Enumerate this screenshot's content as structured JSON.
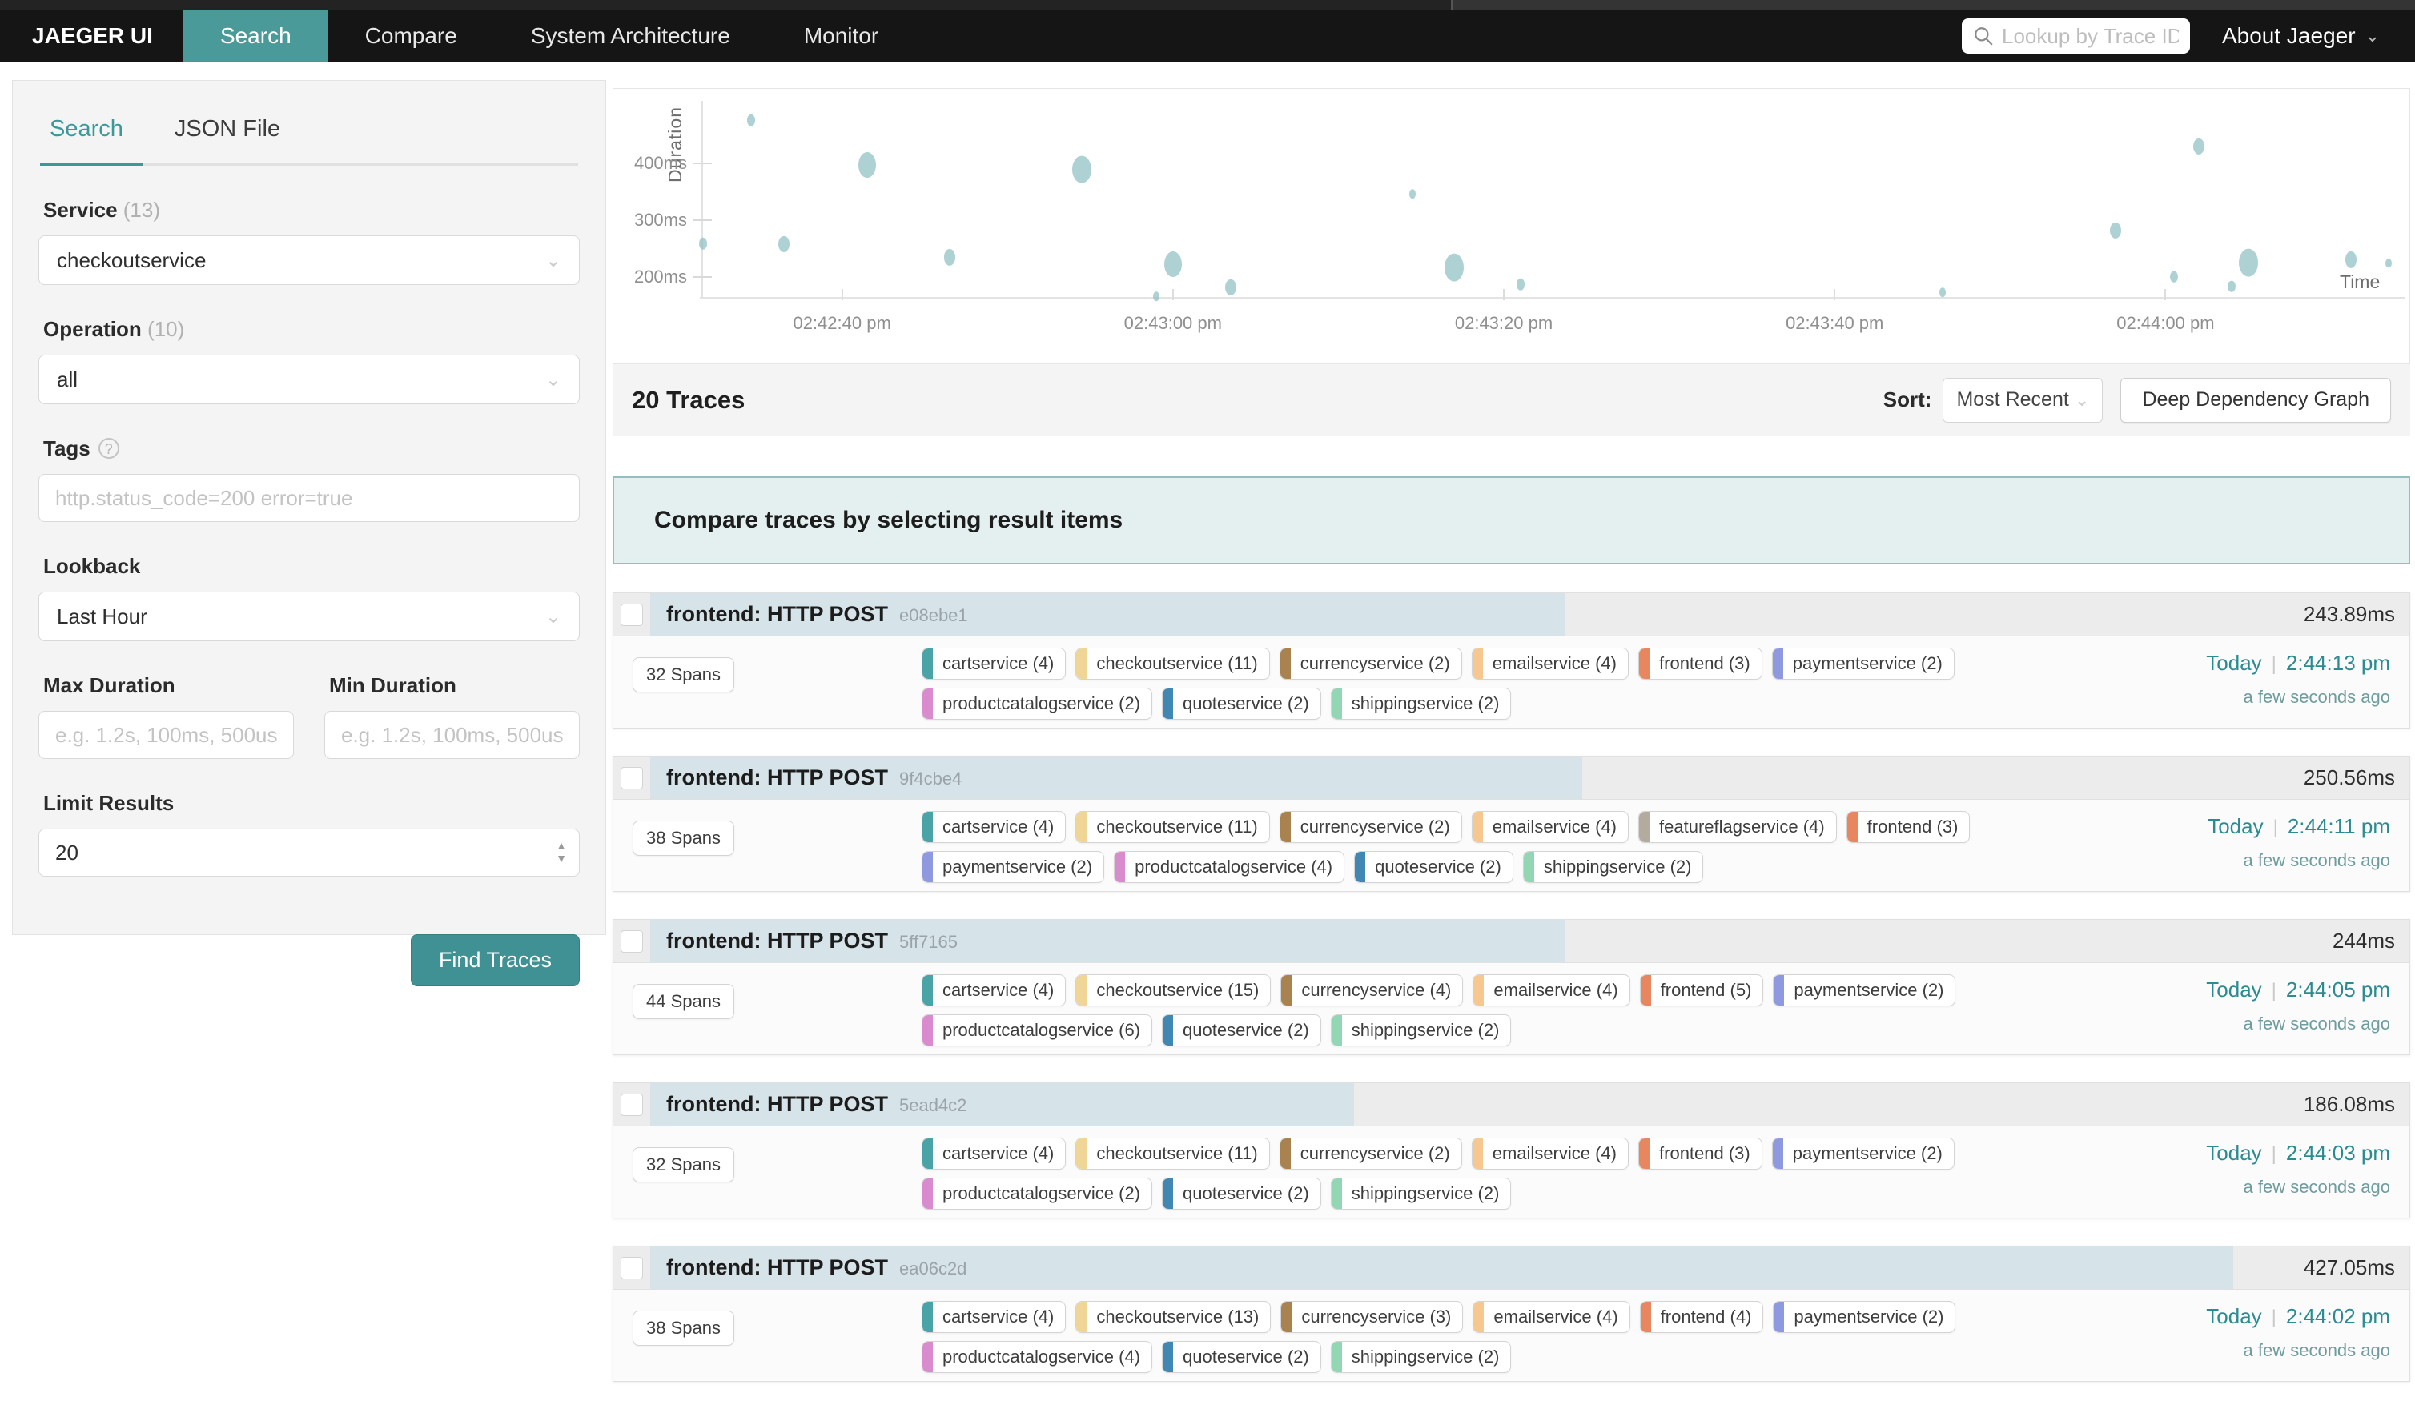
{
  "navbar": {
    "brand": "JAEGER UI",
    "items": [
      {
        "label": "Search",
        "active": true
      },
      {
        "label": "Compare",
        "active": false
      },
      {
        "label": "System Architecture",
        "active": false
      },
      {
        "label": "Monitor",
        "active": false
      }
    ],
    "trace_lookup_placeholder": "Lookup by Trace ID...",
    "about_label": "About Jaeger"
  },
  "sidebar": {
    "tabs": [
      {
        "label": "Search",
        "active": true
      },
      {
        "label": "JSON File",
        "active": false
      }
    ],
    "service": {
      "label": "Service",
      "count": "(13)",
      "value": "checkoutservice"
    },
    "operation": {
      "label": "Operation",
      "count": "(10)",
      "value": "all"
    },
    "tags": {
      "label": "Tags",
      "placeholder": "http.status_code=200 error=true"
    },
    "lookback": {
      "label": "Lookback",
      "value": "Last Hour"
    },
    "max_duration": {
      "label": "Max Duration",
      "placeholder": "e.g. 1.2s, 100ms, 500us"
    },
    "min_duration": {
      "label": "Min Duration",
      "placeholder": "e.g. 1.2s, 100ms, 500us"
    },
    "limit": {
      "label": "Limit Results",
      "value": "20"
    },
    "find_button": "Find Traces"
  },
  "chart_data": {
    "type": "scatter",
    "ylabel": "Duration",
    "xlabel": "Time",
    "grid": false,
    "x_domain_sec": [
      0,
      103
    ],
    "y_domain_ms": [
      164,
      510
    ],
    "x_ticks": [
      {
        "label": "02:42:40 pm",
        "t": 8.5
      },
      {
        "label": "02:43:00 pm",
        "t": 28.5
      },
      {
        "label": "02:43:20 pm",
        "t": 48.5
      },
      {
        "label": "02:43:40 pm",
        "t": 68.5
      },
      {
        "label": "02:44:00 pm",
        "t": 88.5
      }
    ],
    "y_ticks": [
      {
        "label": "200ms",
        "v": 200
      },
      {
        "label": "300ms",
        "v": 300
      },
      {
        "label": "400ms",
        "v": 400
      }
    ],
    "points": [
      {
        "t": 0,
        "d": 258,
        "r": 5
      },
      {
        "t": 3,
        "d": 476,
        "r": 5
      },
      {
        "t": 5,
        "d": 257,
        "r": 7
      },
      {
        "t": 10,
        "d": 397,
        "r": 11
      },
      {
        "t": 15,
        "d": 234,
        "r": 7
      },
      {
        "t": 23,
        "d": 389,
        "r": 12
      },
      {
        "t": 27.5,
        "d": 165,
        "r": 4
      },
      {
        "t": 28.5,
        "d": 222,
        "r": 11
      },
      {
        "t": 32,
        "d": 181,
        "r": 7
      },
      {
        "t": 43,
        "d": 346,
        "r": 4
      },
      {
        "t": 45.5,
        "d": 216,
        "r": 12
      },
      {
        "t": 49.5,
        "d": 186,
        "r": 5
      },
      {
        "t": 75,
        "d": 172,
        "r": 4
      },
      {
        "t": 85.5,
        "d": 281,
        "r": 7
      },
      {
        "t": 90.5,
        "d": 430,
        "r": 7
      },
      {
        "t": 93.5,
        "d": 225,
        "r": 12
      },
      {
        "t": 89,
        "d": 200,
        "r": 5
      },
      {
        "t": 92.5,
        "d": 183,
        "r": 5
      },
      {
        "t": 99.7,
        "d": 230,
        "r": 7
      },
      {
        "t": 102,
        "d": 224,
        "r": 4
      }
    ]
  },
  "results": {
    "count_label": "20 Traces",
    "sort_label": "Sort:",
    "sort_value": "Most Recent",
    "ddg_button": "Deep Dependency Graph",
    "banner": "Compare traces by selecting result items",
    "traces": [
      {
        "title": "frontend: HTTP POST",
        "trace_id": "e08ebe1",
        "duration": "243.89ms",
        "bar_pct": 52,
        "spans": "32 Spans",
        "date": "Today",
        "time": "2:44:13 pm",
        "relative": "a few seconds ago",
        "services": [
          {
            "label": "cartservice (4)",
            "color": "#4aa3a6"
          },
          {
            "label": "checkoutservice (11)",
            "color": "#efd696"
          },
          {
            "label": "currencyservice (2)",
            "color": "#a8824f"
          },
          {
            "label": "emailservice (4)",
            "color": "#f6c78f"
          },
          {
            "label": "frontend (3)",
            "color": "#e8875f"
          },
          {
            "label": "paymentservice (2)",
            "color": "#8f99e0"
          },
          {
            "label": "productcatalogservice (2)",
            "color": "#d98ccd"
          },
          {
            "label": "quoteservice (2)",
            "color": "#4187b3"
          },
          {
            "label": "shippingservice (2)",
            "color": "#92d6b4"
          }
        ]
      },
      {
        "title": "frontend: HTTP POST",
        "trace_id": "9f4cbe4",
        "duration": "250.56ms",
        "bar_pct": 53,
        "spans": "38 Spans",
        "date": "Today",
        "time": "2:44:11 pm",
        "relative": "a few seconds ago",
        "services": [
          {
            "label": "cartservice (4)",
            "color": "#4aa3a6"
          },
          {
            "label": "checkoutservice (11)",
            "color": "#efd696"
          },
          {
            "label": "currencyservice (2)",
            "color": "#a8824f"
          },
          {
            "label": "emailservice (4)",
            "color": "#f6c78f"
          },
          {
            "label": "featureflagservice (4)",
            "color": "#b3ab9e"
          },
          {
            "label": "frontend (3)",
            "color": "#e8875f"
          },
          {
            "label": "paymentservice (2)",
            "color": "#8f99e0"
          },
          {
            "label": "productcatalogservice (4)",
            "color": "#d98ccd"
          },
          {
            "label": "quoteservice (2)",
            "color": "#4187b3"
          },
          {
            "label": "shippingservice (2)",
            "color": "#92d6b4"
          }
        ]
      },
      {
        "title": "frontend: HTTP POST",
        "trace_id": "5ff7165",
        "duration": "244ms",
        "bar_pct": 52,
        "spans": "44 Spans",
        "date": "Today",
        "time": "2:44:05 pm",
        "relative": "a few seconds ago",
        "services": [
          {
            "label": "cartservice (4)",
            "color": "#4aa3a6"
          },
          {
            "label": "checkoutservice (15)",
            "color": "#efd696"
          },
          {
            "label": "currencyservice (4)",
            "color": "#a8824f"
          },
          {
            "label": "emailservice (4)",
            "color": "#f6c78f"
          },
          {
            "label": "frontend (5)",
            "color": "#e8875f"
          },
          {
            "label": "paymentservice (2)",
            "color": "#8f99e0"
          },
          {
            "label": "productcatalogservice (6)",
            "color": "#d98ccd"
          },
          {
            "label": "quoteservice (2)",
            "color": "#4187b3"
          },
          {
            "label": "shippingservice (2)",
            "color": "#92d6b4"
          }
        ]
      },
      {
        "title": "frontend: HTTP POST",
        "trace_id": "5ead4c2",
        "duration": "186.08ms",
        "bar_pct": 40,
        "spans": "32 Spans",
        "date": "Today",
        "time": "2:44:03 pm",
        "relative": "a few seconds ago",
        "services": [
          {
            "label": "cartservice (4)",
            "color": "#4aa3a6"
          },
          {
            "label": "checkoutservice (11)",
            "color": "#efd696"
          },
          {
            "label": "currencyservice (2)",
            "color": "#a8824f"
          },
          {
            "label": "emailservice (4)",
            "color": "#f6c78f"
          },
          {
            "label": "frontend (3)",
            "color": "#e8875f"
          },
          {
            "label": "paymentservice (2)",
            "color": "#8f99e0"
          },
          {
            "label": "productcatalogservice (2)",
            "color": "#d98ccd"
          },
          {
            "label": "quoteservice (2)",
            "color": "#4187b3"
          },
          {
            "label": "shippingservice (2)",
            "color": "#92d6b4"
          }
        ]
      },
      {
        "title": "frontend: HTTP POST",
        "trace_id": "ea06c2d",
        "duration": "427.05ms",
        "bar_pct": 90,
        "spans": "38 Spans",
        "date": "Today",
        "time": "2:44:02 pm",
        "relative": "a few seconds ago",
        "services": [
          {
            "label": "cartservice (4)",
            "color": "#4aa3a6"
          },
          {
            "label": "checkoutservice (13)",
            "color": "#efd696"
          },
          {
            "label": "currencyservice (3)",
            "color": "#a8824f"
          },
          {
            "label": "emailservice (4)",
            "color": "#f6c78f"
          },
          {
            "label": "frontend (4)",
            "color": "#e8875f"
          },
          {
            "label": "paymentservice (2)",
            "color": "#8f99e0"
          },
          {
            "label": "productcatalogservice (4)",
            "color": "#d98ccd"
          },
          {
            "label": "quoteservice (2)",
            "color": "#4187b3"
          },
          {
            "label": "shippingservice (2)",
            "color": "#92d6b4"
          }
        ]
      }
    ]
  }
}
